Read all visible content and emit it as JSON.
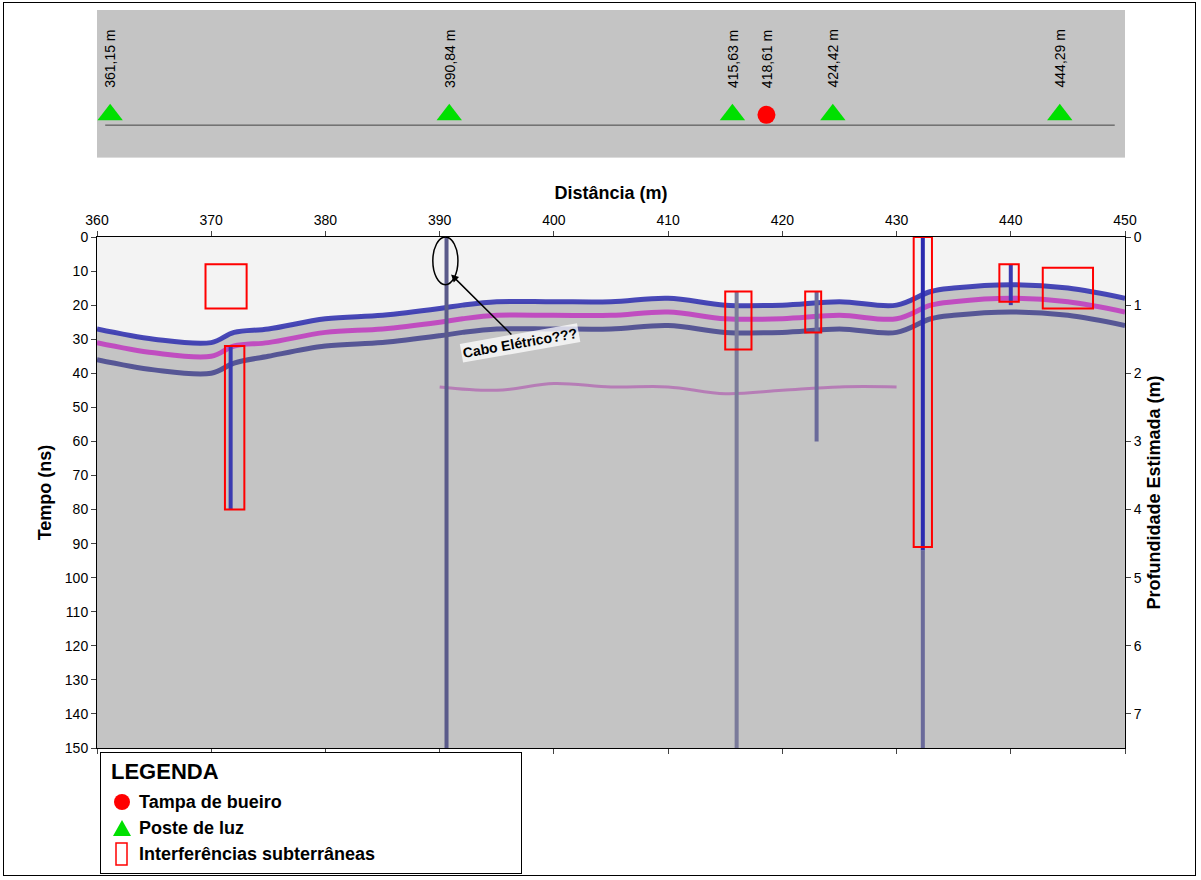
{
  "chart_data": {
    "type": "radargram",
    "x_title": "Distância (m)",
    "y_title": "Tempo (ns)",
    "y2_title": "Profundidade Estimada (m)",
    "xlim": [
      360,
      450
    ],
    "xticks": [
      360,
      370,
      380,
      390,
      400,
      410,
      420,
      430,
      440,
      450
    ],
    "ylim": [
      150,
      0
    ],
    "yticks": [
      0,
      10,
      20,
      30,
      40,
      50,
      60,
      70,
      80,
      90,
      100,
      110,
      120,
      130,
      140,
      150
    ],
    "y2lim": [
      7.5,
      0
    ],
    "y2ticks": [
      0,
      1,
      2,
      3,
      4,
      5,
      6,
      7
    ],
    "grid": false,
    "legend": "bottom left",
    "legend_title": "LEGENDA",
    "features": [
      {
        "name": "Tampa de bueiro",
        "marker": "circle",
        "color": "#ff0000",
        "x": [
          418.61
        ],
        "labels": [
          "418,61 m"
        ]
      },
      {
        "name": "Poste de luz",
        "marker": "triangle-up",
        "color": "#00e000",
        "x": [
          361.15,
          390.84,
          415.63,
          424.42,
          444.29
        ],
        "labels": [
          "361,15 m",
          "390,84 m",
          "415,63 m",
          "424,42 m",
          "444,29 m"
        ]
      }
    ],
    "interferences": {
      "name": "Interferências subterrâneas",
      "color": "#ff0000",
      "boxes": [
        {
          "x0": 369.5,
          "x1": 373.1,
          "y0": 8,
          "y1": 21
        },
        {
          "x0": 371.2,
          "x1": 372.9,
          "y0": 32,
          "y1": 80
        },
        {
          "x0": 415.0,
          "x1": 417.3,
          "y0": 16,
          "y1": 33
        },
        {
          "x0": 422.0,
          "x1": 423.4,
          "y0": 16,
          "y1": 28
        },
        {
          "x0": 431.5,
          "x1": 433.1,
          "y0": 0,
          "y1": 91
        },
        {
          "x0": 439.0,
          "x1": 440.7,
          "y0": 8,
          "y1": 19
        },
        {
          "x0": 442.8,
          "x1": 447.2,
          "y0": 9,
          "y1": 21
        }
      ]
    },
    "reflectors": [
      {
        "color": "#3535b0",
        "x": [
          360,
          365,
          370,
          372,
          375,
          380,
          385,
          390,
          392,
          395,
          400,
          405,
          410,
          415,
          420,
          425,
          430,
          433,
          435,
          440,
          445,
          450
        ],
        "values": [
          27,
          30,
          31,
          28,
          27,
          24,
          23,
          21,
          20,
          19,
          19,
          19,
          18,
          20,
          20,
          19,
          20,
          16,
          15,
          14,
          15,
          18
        ]
      },
      {
        "color": "#c040c0",
        "x": [
          360,
          365,
          370,
          372,
          375,
          380,
          385,
          390,
          392,
          395,
          400,
          405,
          410,
          415,
          420,
          425,
          430,
          433,
          435,
          440,
          445,
          450
        ],
        "values": [
          31,
          34,
          35,
          32,
          31,
          28,
          27,
          25,
          24,
          23,
          23,
          23,
          22,
          24,
          24,
          23,
          24,
          20,
          19,
          18,
          19,
          22
        ]
      },
      {
        "color": "#4a4a90",
        "x": [
          360,
          365,
          370,
          372,
          375,
          380,
          385,
          390,
          392,
          395,
          400,
          405,
          410,
          415,
          420,
          425,
          430,
          433,
          435,
          440,
          445,
          450
        ],
        "values": [
          36,
          39,
          40,
          37,
          35,
          32,
          31,
          29,
          28,
          27,
          27,
          27,
          26,
          28,
          28,
          27,
          28,
          24,
          23,
          22,
          23,
          26
        ]
      },
      {
        "color": "#b060b0",
        "x": [
          390,
          395,
          400,
          405,
          410,
          415,
          420,
          425,
          430
        ],
        "values": [
          44,
          45,
          43,
          44,
          44,
          46,
          45,
          44,
          44
        ]
      }
    ],
    "anomalies": [
      {
        "x": 371.7,
        "y0": 32,
        "y1": 80,
        "color": "#3a3ab0"
      },
      {
        "x": 390.6,
        "y0": 0,
        "y1": 150,
        "color": "#5a5a8a"
      },
      {
        "x": 416.0,
        "y0": 16,
        "y1": 150,
        "color": "#7a7a9a"
      },
      {
        "x": 423.0,
        "y0": 16,
        "y1": 60,
        "color": "#6a6a9a"
      },
      {
        "x": 432.3,
        "y0": 0,
        "y1": 92,
        "color": "#2b2bb0"
      },
      {
        "x": 432.3,
        "y0": 92,
        "y1": 150,
        "color": "#6a6a9a"
      },
      {
        "x": 440.0,
        "y0": 8,
        "y1": 20,
        "color": "#3a3ab0"
      }
    ],
    "annotation": {
      "text": "Cabo Elétrico???",
      "x": 391,
      "y": 11,
      "text_x": 397,
      "text_y": 31
    },
    "ellipse": {
      "x0": 389.4,
      "x1": 391.6,
      "y0": 0,
      "y1": 14,
      "color": "#000000"
    }
  }
}
